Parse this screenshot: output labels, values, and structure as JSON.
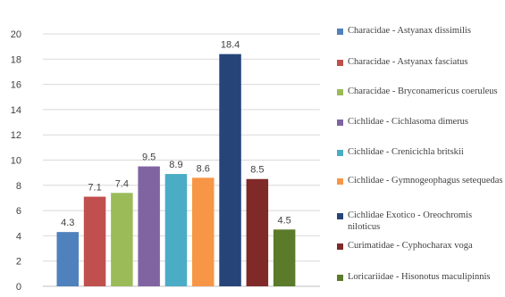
{
  "chart_data": {
    "type": "bar",
    "title": "",
    "xlabel": "",
    "ylabel": "",
    "ylim": [
      0,
      20
    ],
    "y_ticks": [
      0,
      2,
      4,
      6,
      8,
      10,
      12,
      14,
      16,
      18,
      20
    ],
    "grid": true,
    "legend_position": "right",
    "series": [
      {
        "name": "Characidae - Astyanax dissimilis",
        "value": 4.3,
        "label": "4.3",
        "color": "#4f81bd"
      },
      {
        "name": "Characidae - Astyanax fasciatus",
        "value": 7.1,
        "label": "7.1",
        "color": "#c0504d"
      },
      {
        "name": "Characidae - Bryconamericus coeruleus",
        "value": 7.4,
        "label": "7.4",
        "color": "#9bbb59"
      },
      {
        "name": "Cichlidae -  Cichlasoma dimerus",
        "value": 9.5,
        "label": "9.5",
        "color": "#8064a2"
      },
      {
        "name": "Cichlidae - Crenicichla britskii",
        "value": 8.9,
        "label": "8.9",
        "color": "#4bacc6"
      },
      {
        "name": "Cichlidae - Gymnogeophagus setequedas",
        "value": 8.6,
        "label": "8.6",
        "color": "#f79646"
      },
      {
        "name": "Cichlidae Exotico - Oreochromis niloticus",
        "value": 18.4,
        "label": "18.4",
        "color": "#264478"
      },
      {
        "name": "Curimatidae - Cyphocharax voga",
        "value": 8.5,
        "label": "8.5",
        "color": "#7f2a28"
      },
      {
        "name": "Loricariidae - Hisonotus maculipinnis",
        "value": 4.5,
        "label": "4.5",
        "color": "#5b7a2a"
      }
    ]
  }
}
